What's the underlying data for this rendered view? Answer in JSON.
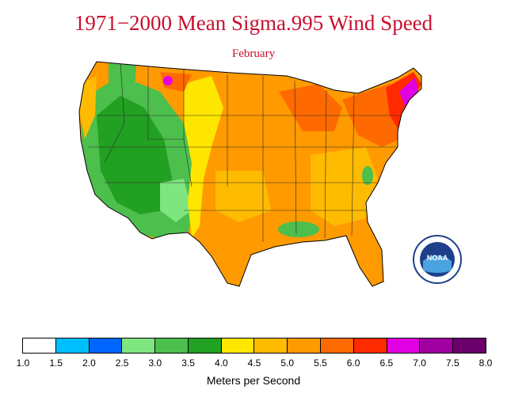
{
  "title": "1971−2000 Mean Sigma.995 Wind Speed",
  "subtitle": "February",
  "legend": {
    "units": "Meters per Second",
    "ticks": [
      "1.0",
      "1.5",
      "2.0",
      "2.5",
      "3.0",
      "3.5",
      "4.0",
      "4.5",
      "5.0",
      "5.5",
      "6.0",
      "6.5",
      "7.0",
      "7.5",
      "8.0"
    ],
    "colors": [
      "#ffffff",
      "#00bfff",
      "#0066ff",
      "#7fe57f",
      "#4cbf4c",
      "#22a022",
      "#ffe600",
      "#ffbb00",
      "#ff9a00",
      "#ff6a00",
      "#ff2a00",
      "#e100e1",
      "#a000a0",
      "#6a006a",
      "#2a0020"
    ]
  },
  "logo": {
    "text": "NOAA",
    "icon": "noaa-logo-icon"
  },
  "map": {
    "region": "contiguous-united-states",
    "month": "February"
  }
}
